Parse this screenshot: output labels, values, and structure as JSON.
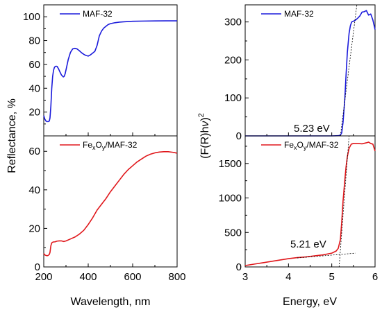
{
  "colors": {
    "blue": "#1a1adb",
    "red": "#e0171b",
    "black": "#000000"
  },
  "chart_data": [
    {
      "type": "line",
      "panel": "top-left",
      "legend": "MAF-32",
      "legend_position": "top-left",
      "xlim": [
        200,
        800
      ],
      "ylim": [
        0,
        110
      ],
      "yticks": [
        "20",
        "40",
        "60",
        "80",
        "100"
      ],
      "ytick_values": [
        20,
        40,
        60,
        80,
        100
      ],
      "series": [
        {
          "name": "MAF-32",
          "color": "#1a1adb",
          "x": [
            200,
            205,
            210,
            215,
            220,
            225,
            228,
            232,
            236,
            240,
            244,
            248,
            252,
            256,
            260,
            266,
            272,
            280,
            288,
            292,
            296,
            302,
            310,
            320,
            330,
            340,
            350,
            360,
            370,
            380,
            390,
            400,
            410,
            420,
            430,
            440,
            450,
            460,
            470,
            480,
            490,
            500,
            520,
            540,
            560,
            580,
            600,
            650,
            700,
            750,
            800
          ],
          "y": [
            17,
            14,
            12.5,
            12,
            12,
            12.5,
            15,
            25,
            40,
            50,
            55,
            57.5,
            58.3,
            58.5,
            58.3,
            56.5,
            54,
            51,
            49.5,
            50,
            52,
            57,
            64,
            70,
            73,
            73.5,
            73,
            71.5,
            69.8,
            68.5,
            67.5,
            67,
            68,
            69.5,
            71,
            76,
            84,
            88,
            90.5,
            92,
            93.5,
            94.2,
            95,
            95.5,
            95.8,
            96,
            96.2,
            96.4,
            96.5,
            96.6,
            96.6
          ]
        }
      ]
    },
    {
      "type": "line",
      "panel": "bottom-left",
      "legend": "FexOy/MAF-32",
      "legend_parts": {
        "base": "Fe",
        "sub1": "x",
        "mid": "O",
        "sub2": "y",
        "tail": "/MAF-32"
      },
      "legend_position": "top-left",
      "xlim": [
        200,
        800
      ],
      "ylim": [
        0,
        68
      ],
      "xticks": [
        "200",
        "400",
        "600",
        "800"
      ],
      "xtick_values": [
        200,
        400,
        600,
        800
      ],
      "yticks": [
        "0",
        "20",
        "40",
        "60"
      ],
      "ytick_values": [
        0,
        20,
        40,
        60
      ],
      "xlabel": "Wavelength, nm",
      "series": [
        {
          "name": "FexOy/MAF-32",
          "color": "#e0171b",
          "x": [
            200,
            205,
            210,
            215,
            220,
            225,
            228,
            232,
            236,
            240,
            245,
            250,
            260,
            270,
            280,
            290,
            300,
            320,
            340,
            360,
            380,
            400,
            420,
            440,
            460,
            480,
            500,
            520,
            540,
            560,
            580,
            600,
            620,
            640,
            660,
            680,
            700,
            720,
            740,
            760,
            780,
            790,
            800
          ],
          "y": [
            7,
            6.2,
            6,
            5.8,
            6,
            6.5,
            7.5,
            11,
            12.5,
            12.8,
            13,
            13,
            13.4,
            13.5,
            13.5,
            13.2,
            13.5,
            14.5,
            15.5,
            17,
            19,
            22,
            25.5,
            29.5,
            32.5,
            35.5,
            39,
            42,
            45,
            48,
            50.5,
            52.5,
            54.5,
            56,
            57.5,
            58.5,
            59.2,
            59.6,
            59.8,
            59.8,
            59.5,
            59.3,
            59
          ]
        }
      ]
    },
    {
      "type": "line",
      "panel": "top-right",
      "legend": "MAF-32",
      "legend_position": "top-left",
      "xlim": [
        3,
        6
      ],
      "ylim": [
        0,
        345
      ],
      "yticks": [
        "0",
        "100",
        "200",
        "300"
      ],
      "ytick_values": [
        0,
        100,
        200,
        300
      ],
      "annotation": "5.23 eV",
      "series": [
        {
          "name": "MAF-32",
          "color": "#1a1adb",
          "x": [
            3.0,
            3.5,
            4.0,
            4.5,
            5.0,
            5.15,
            5.2,
            5.23,
            5.26,
            5.3,
            5.33,
            5.36,
            5.4,
            5.43,
            5.46,
            5.5,
            5.55,
            5.6,
            5.65,
            5.7,
            5.75,
            5.8,
            5.85,
            5.9,
            5.95,
            6.0
          ],
          "y": [
            0,
            0,
            0,
            0,
            0,
            0.5,
            2,
            8,
            35,
            95,
            160,
            220,
            270,
            290,
            300,
            302,
            305,
            310,
            316,
            326,
            327,
            330,
            318,
            321,
            305,
            280
          ]
        },
        {
          "name": "tangent",
          "color": "#000000",
          "dashed": true,
          "x": [
            5.2,
            5.58
          ],
          "y": [
            0,
            345
          ]
        }
      ]
    },
    {
      "type": "line",
      "panel": "bottom-right",
      "legend": "FexOy/MAF-32",
      "legend_parts": {
        "base": "Fe",
        "sub1": "x",
        "mid": "O",
        "sub2": "y",
        "tail": "/MAF-32"
      },
      "legend_position": "top-left",
      "xlim": [
        3,
        6
      ],
      "ylim": [
        0,
        1900
      ],
      "xticks": [
        "3",
        "4",
        "5",
        "6"
      ],
      "xtick_values": [
        3,
        4,
        5,
        6
      ],
      "yticks": [
        "0",
        "500",
        "1000",
        "1500"
      ],
      "ytick_values": [
        0,
        500,
        1000,
        1500
      ],
      "xlabel": "Energy, eV",
      "annotation": "5.21 eV",
      "series": [
        {
          "name": "FexOy/MAF-32",
          "color": "#e0171b",
          "x": [
            3.0,
            3.2,
            3.4,
            3.6,
            3.8,
            4.0,
            4.2,
            4.4,
            4.6,
            4.8,
            5.0,
            5.1,
            5.15,
            5.2,
            5.23,
            5.26,
            5.3,
            5.33,
            5.36,
            5.4,
            5.45,
            5.5,
            5.6,
            5.7,
            5.8,
            5.85,
            5.9,
            5.95,
            6.0
          ],
          "y": [
            20,
            40,
            60,
            80,
            100,
            120,
            135,
            145,
            160,
            175,
            200,
            230,
            270,
            400,
            650,
            950,
            1250,
            1450,
            1600,
            1720,
            1780,
            1790,
            1790,
            1785,
            1800,
            1810,
            1790,
            1780,
            1680
          ]
        },
        {
          "name": "tangent-steep",
          "color": "#000000",
          "dashed": true,
          "x": [
            5.17,
            5.4
          ],
          "y": [
            0,
            1900
          ]
        },
        {
          "name": "tangent-base",
          "color": "#000000",
          "dashed": true,
          "x": [
            4.2,
            5.55
          ],
          "y": [
            130,
            200
          ]
        }
      ]
    }
  ],
  "labels": {
    "left_ylabel": "Reflectance, %",
    "left_xlabel": "Wavelength, nm",
    "right_xlabel": "Energy, eV",
    "right_ylabel_base": "(F(R)h",
    "right_ylabel_nu": "ν",
    "right_ylabel_close": ")",
    "right_ylabel_sup": "2"
  }
}
